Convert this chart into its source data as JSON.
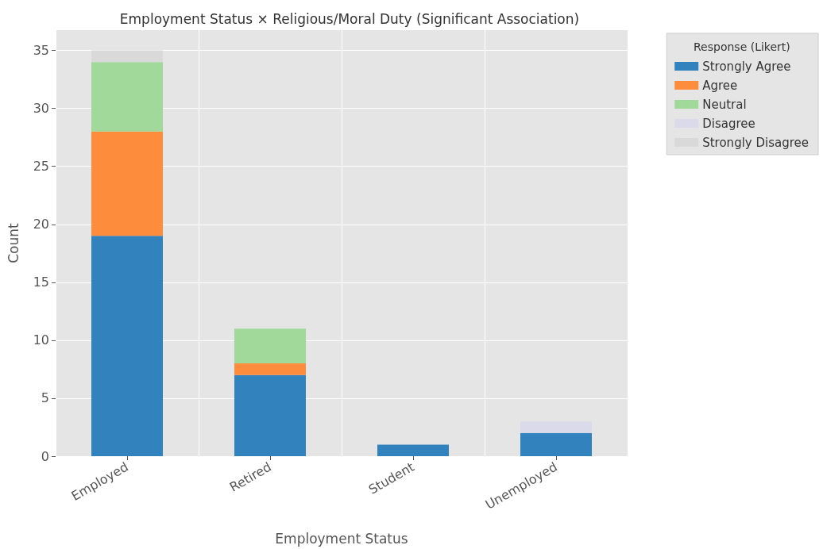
{
  "chart_data": {
    "type": "bar",
    "stacked": true,
    "title": "Employment Status × Religious/Moral Duty (Significant Association)",
    "xlabel": "Employment Status",
    "ylabel": "Count",
    "legend_title": "Response (Likert)",
    "categories": [
      "Employed",
      "Retired",
      "Student",
      "Unemployed"
    ],
    "series": [
      {
        "name": "Strongly Agree",
        "color": "#3182bd",
        "values": [
          19,
          7,
          1,
          2
        ]
      },
      {
        "name": "Agree",
        "color": "#fd8d3c",
        "values": [
          9,
          1,
          0,
          0
        ]
      },
      {
        "name": "Neutral",
        "color": "#a1d99b",
        "values": [
          6,
          3,
          0,
          0
        ]
      },
      {
        "name": "Disagree",
        "color": "#dadaeb",
        "values": [
          0,
          0,
          0,
          1
        ]
      },
      {
        "name": "Strongly Disagree",
        "color": "#d9d9d9",
        "values": [
          1,
          0,
          0,
          0
        ]
      }
    ],
    "ylim": [
      0,
      36.75
    ],
    "yticks": [
      0,
      5,
      10,
      15,
      20,
      25,
      30,
      35
    ],
    "grid": true,
    "legend": "top right"
  }
}
